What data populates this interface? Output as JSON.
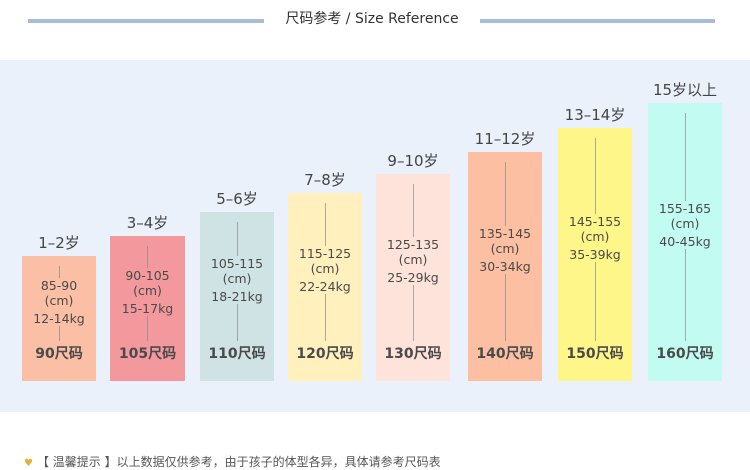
{
  "header": {
    "title": "尺码参考 / Size Reference"
  },
  "columns": [
    {
      "age": "1–2岁",
      "height": "85-90",
      "unit": "(cm)",
      "weight": "12-14kg",
      "size": "90尺码",
      "color": "#fbbfa6"
    },
    {
      "age": "3–4岁",
      "height": "90-105",
      "unit": "(cm)",
      "weight": "15-17kg",
      "size": "105尺码",
      "color": "#f3999d"
    },
    {
      "age": "5–6岁",
      "height": "105-115",
      "unit": "(cm)",
      "weight": "18-21kg",
      "size": "110尺码",
      "color": "#cfe3e4"
    },
    {
      "age": "7–8岁",
      "height": "115-125",
      "unit": "(cm)",
      "weight": "22-24kg",
      "size": "120尺码",
      "color": "#fff0bd"
    },
    {
      "age": "9–10岁",
      "height": "125-135",
      "unit": "(cm)",
      "weight": "25-29kg",
      "size": "130尺码",
      "color": "#fde3da"
    },
    {
      "age": "11–12岁",
      "height": "135-145",
      "unit": "(cm)",
      "weight": "30-34kg",
      "size": "140尺码",
      "color": "#fcbfa2"
    },
    {
      "age": "13–14岁",
      "height": "145-155",
      "unit": "(cm)",
      "weight": "35-39kg",
      "size": "150尺码",
      "color": "#fff68a"
    },
    {
      "age": "15岁以上",
      "height": "155-165",
      "unit": "(cm)",
      "weight": "40-45kg",
      "size": "160尺码",
      "color": "#c1fbf1"
    }
  ],
  "footer": {
    "note": "【 温馨提示 】以上数据仅供参考，由于孩子的体型各异，具体请参考尺码表",
    "icon": "heart-icon"
  }
}
